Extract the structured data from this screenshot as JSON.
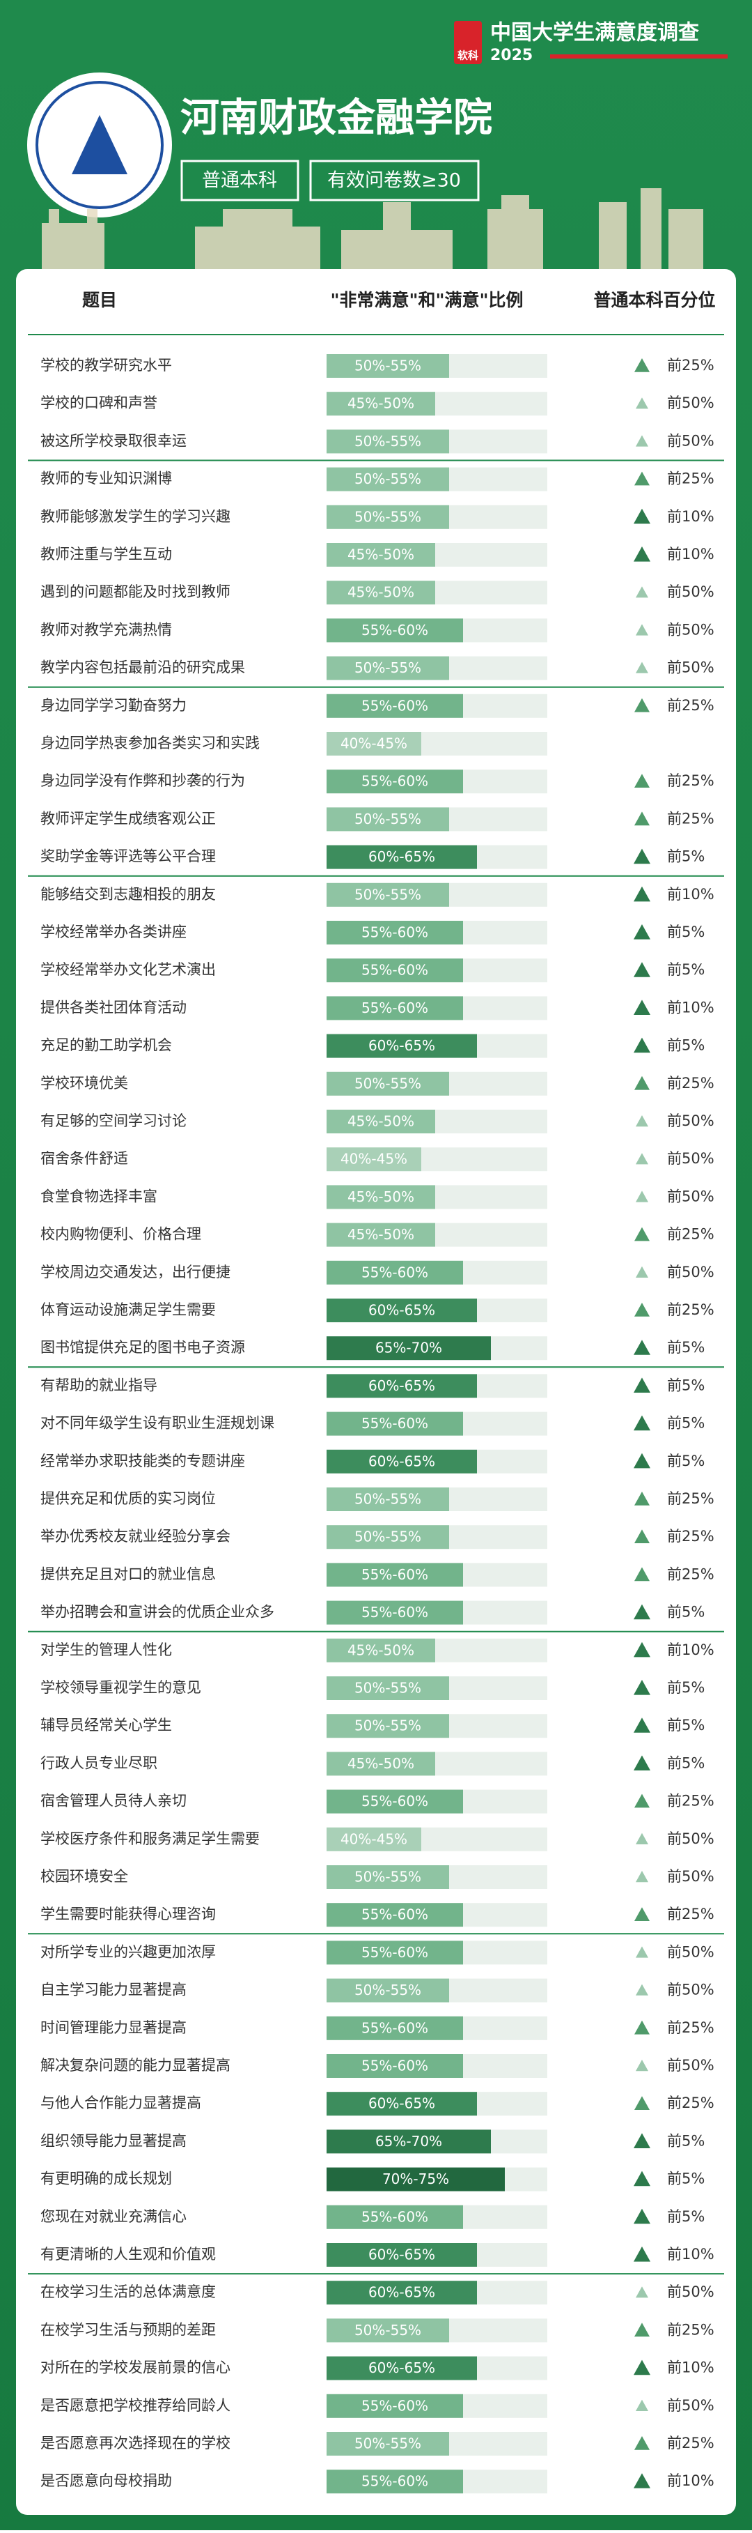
{
  "header": {
    "brand_icon": "软科",
    "brand": "中国大学生满意度调查",
    "year": "2025",
    "school": "河南财政金融学院",
    "tags": [
      "普通本科",
      "有效问卷数≥30"
    ]
  },
  "table": {
    "columns": [
      "题目",
      "\"非常满意\"和\"满意\"比例",
      "普通本科百分位"
    ],
    "groups": [
      [
        [
          "学校的教学研究水平",
          "50%-55%",
          "前25%"
        ],
        [
          "学校的口碑和声誉",
          "45%-50%",
          "前50%"
        ],
        [
          "被这所学校录取很幸运",
          "50%-55%",
          "前50%"
        ]
      ],
      [
        [
          "教师的专业知识渊博",
          "50%-55%",
          "前25%"
        ],
        [
          "教师能够激发学生的学习兴趣",
          "50%-55%",
          "前10%"
        ],
        [
          "教师注重与学生互动",
          "45%-50%",
          "前10%"
        ],
        [
          "遇到的问题都能及时找到教师",
          "45%-50%",
          "前50%"
        ],
        [
          "教师对教学充满热情",
          "55%-60%",
          "前50%"
        ],
        [
          "教学内容包括最前沿的研究成果",
          "50%-55%",
          "前50%"
        ]
      ],
      [
        [
          "身边同学学习勤奋努力",
          "55%-60%",
          "前25%"
        ],
        [
          "身边同学热衷参加各类实习和实践",
          "40%-45%",
          null
        ],
        [
          "身边同学没有作弊和抄袭的行为",
          "55%-60%",
          "前25%"
        ],
        [
          "教师评定学生成绩客观公正",
          "50%-55%",
          "前25%"
        ],
        [
          "奖助学金等评选等公平合理",
          "60%-65%",
          "前5%"
        ]
      ],
      [
        [
          "能够结交到志趣相投的朋友",
          "50%-55%",
          "前10%"
        ],
        [
          "学校经常举办各类讲座",
          "55%-60%",
          "前5%"
        ],
        [
          "学校经常举办文化艺术演出",
          "55%-60%",
          "前5%"
        ],
        [
          "提供各类社团体育活动",
          "55%-60%",
          "前10%"
        ],
        [
          "充足的勤工助学机会",
          "60%-65%",
          "前5%"
        ],
        [
          "学校环境优美",
          "50%-55%",
          "前25%"
        ],
        [
          "有足够的空间学习讨论",
          "45%-50%",
          "前50%"
        ],
        [
          "宿舍条件舒适",
          "40%-45%",
          "前50%"
        ],
        [
          "食堂食物选择丰富",
          "45%-50%",
          "前50%"
        ],
        [
          "校内购物便利、价格合理",
          "45%-50%",
          "前25%"
        ],
        [
          "学校周边交通发达，出行便捷",
          "55%-60%",
          "前50%"
        ],
        [
          "体育运动设施满足学生需要",
          "60%-65%",
          "前25%"
        ],
        [
          "图书馆提供充足的图书电子资源",
          "65%-70%",
          "前5%"
        ]
      ],
      [
        [
          "有帮助的就业指导",
          "60%-65%",
          "前5%"
        ],
        [
          "对不同年级学生设有职业生涯规划课",
          "55%-60%",
          "前5%"
        ],
        [
          "经常举办求职技能类的专题讲座",
          "60%-65%",
          "前5%"
        ],
        [
          "提供充足和优质的实习岗位",
          "50%-55%",
          "前25%"
        ],
        [
          "举办优秀校友就业经验分享会",
          "50%-55%",
          "前25%"
        ],
        [
          "提供充足且对口的就业信息",
          "55%-60%",
          "前25%"
        ],
        [
          "举办招聘会和宣讲会的优质企业众多",
          "55%-60%",
          "前5%"
        ]
      ],
      [
        [
          "对学生的管理人性化",
          "45%-50%",
          "前10%"
        ],
        [
          "学校领导重视学生的意见",
          "50%-55%",
          "前5%"
        ],
        [
          "辅导员经常关心学生",
          "50%-55%",
          "前5%"
        ],
        [
          "行政人员专业尽职",
          "45%-50%",
          "前5%"
        ],
        [
          "宿舍管理人员待人亲切",
          "55%-60%",
          "前25%"
        ],
        [
          "学校医疗条件和服务满足学生需要",
          "40%-45%",
          "前50%"
        ],
        [
          "校园环境安全",
          "50%-55%",
          "前50%"
        ],
        [
          "学生需要时能获得心理咨询",
          "55%-60%",
          "前25%"
        ]
      ],
      [
        [
          "对所学专业的兴趣更加浓厚",
          "55%-60%",
          "前50%"
        ],
        [
          "自主学习能力显著提高",
          "50%-55%",
          "前50%"
        ],
        [
          "时间管理能力显著提高",
          "55%-60%",
          "前25%"
        ],
        [
          "解决复杂问题的能力显著提高",
          "55%-60%",
          "前50%"
        ],
        [
          "与他人合作能力显著提高",
          "60%-65%",
          "前25%"
        ],
        [
          "组织领导能力显著提高",
          "65%-70%",
          "前5%"
        ],
        [
          "有更明确的成长规划",
          "70%-75%",
          "前5%"
        ],
        [
          "您现在对就业充满信心",
          "55%-60%",
          "前5%"
        ],
        [
          "有更清晰的人生观和价值观",
          "60%-65%",
          "前10%"
        ]
      ],
      [
        [
          "在校学习生活的总体满意度",
          "60%-65%",
          "前50%"
        ],
        [
          "在校学习生活与预期的差距",
          "50%-55%",
          "前25%"
        ],
        [
          "对所在的学校发展前景的信心",
          "60%-65%",
          "前10%"
        ],
        [
          "是否愿意把学校推荐给同龄人",
          "55%-60%",
          "前50%"
        ],
        [
          "是否愿意再次选择现在的学校",
          "50%-55%",
          "前25%"
        ],
        [
          "是否愿意向母校捐助",
          "55%-60%",
          "前10%"
        ]
      ]
    ]
  }
}
